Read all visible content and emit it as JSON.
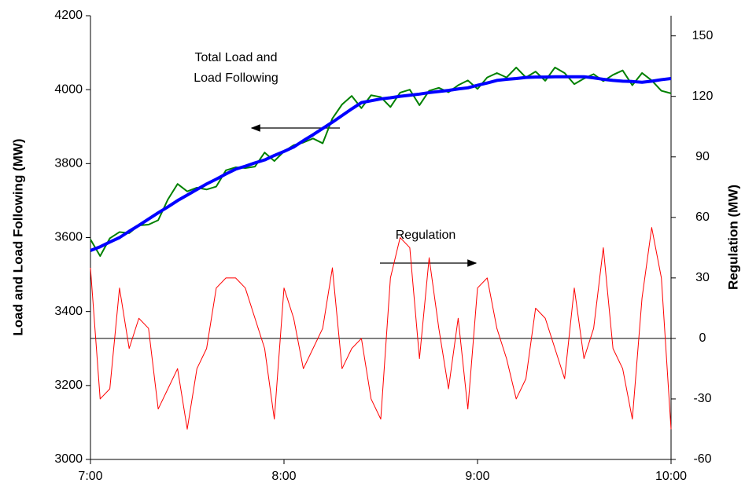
{
  "chart_data": {
    "type": "line",
    "x": [
      420,
      423,
      426,
      429,
      432,
      435,
      438,
      441,
      444,
      447,
      450,
      453,
      456,
      459,
      462,
      465,
      468,
      471,
      474,
      477,
      480,
      483,
      486,
      489,
      492,
      495,
      498,
      501,
      504,
      507,
      510,
      513,
      516,
      519,
      522,
      525,
      528,
      531,
      534,
      537,
      540,
      543,
      546,
      549,
      552,
      555,
      558,
      561,
      564,
      567,
      570,
      573,
      576,
      579,
      582,
      585,
      588,
      591,
      594,
      597,
      600
    ],
    "xlim": [
      420,
      600
    ],
    "xticks": [
      {
        "value": 420,
        "label": "7:00"
      },
      {
        "value": 480,
        "label": "8:00"
      },
      {
        "value": 540,
        "label": "9:00"
      },
      {
        "value": 600,
        "label": "10:00"
      }
    ],
    "ylim": [
      3000,
      4200
    ],
    "yticks": [
      3000,
      3200,
      3400,
      3600,
      3800,
      4000,
      4200
    ],
    "y2lim": [
      -60,
      160
    ],
    "y2ticks": [
      -60,
      -30,
      0,
      30,
      60,
      90,
      120,
      150
    ],
    "ylabel": "Load and Load Following (MW)",
    "y2label": "Regulation (MW)",
    "grid": false,
    "series": [
      {
        "color": "#008000",
        "linewidth": 2,
        "values": [
          3595,
          3550,
          3598,
          3615,
          3612,
          3633,
          3635,
          3647,
          3703,
          3745,
          3725,
          3735,
          3730,
          3738,
          3782,
          3790,
          3788,
          3792,
          3830,
          3807,
          3833,
          3850,
          3857,
          3868,
          3855,
          3922,
          3960,
          3983,
          3950,
          3985,
          3980,
          3953,
          3992,
          4000,
          3958,
          3997,
          4005,
          3993,
          4012,
          4025,
          4002,
          4033,
          4045,
          4033,
          4060,
          4033,
          4049,
          4024,
          4060,
          4045,
          4015,
          4030,
          4042,
          4023,
          4040,
          4052,
          4012,
          4045,
          4025,
          3997,
          3990
        ]
      },
      {
        "color": "#0000ff",
        "linewidth": 4,
        "values": [
          3565,
          3575,
          3588,
          3600,
          3617,
          3633,
          3650,
          3667,
          3683,
          3700,
          3715,
          3730,
          3745,
          3758,
          3772,
          3785,
          3793,
          3802,
          3810,
          3822,
          3833,
          3845,
          3862,
          3878,
          3895,
          3912,
          3930,
          3948,
          3965,
          3970,
          3975,
          3978,
          3982,
          3985,
          3988,
          3992,
          3995,
          3998,
          4002,
          4005,
          4012,
          4018,
          4025,
          4028,
          4030,
          4033,
          4034,
          4034,
          4035,
          4035,
          4035,
          4035,
          4032,
          4028,
          4025,
          4023,
          4022,
          4020,
          4023,
          4027,
          4030
        ]
      },
      {
        "color": "#ff0000",
        "linewidth": 1,
        "axis": "y2",
        "values": [
          35,
          -30,
          -25,
          25,
          -5,
          10,
          5,
          -35,
          -25,
          -15,
          -45,
          -15,
          -5,
          25,
          30,
          30,
          25,
          10,
          -5,
          -40,
          25,
          10,
          -15,
          -5,
          5,
          35,
          -15,
          -5,
          0,
          -30,
          -40,
          30,
          50,
          45,
          -10,
          40,
          5,
          -25,
          10,
          -35,
          25,
          30,
          5,
          -10,
          -30,
          -20,
          15,
          10,
          -5,
          -20,
          25,
          -10,
          5,
          45,
          -5,
          -15,
          -40,
          20,
          55,
          30,
          -45
        ]
      }
    ],
    "annotations": [
      [
        "Total Load and",
        "Load Following"
      ],
      [
        "Regulation"
      ]
    ]
  }
}
